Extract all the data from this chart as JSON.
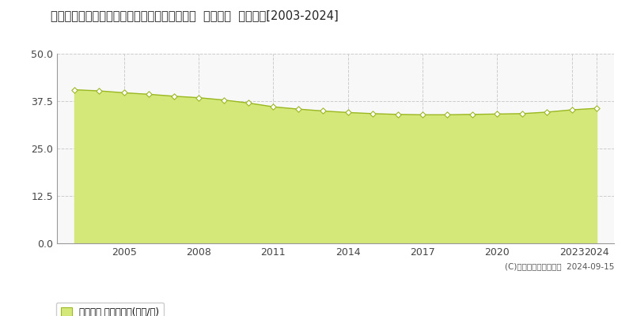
{
  "title": "鹿児島県鹿児島市谷山中央６丁目２９番２１外  地価公示  地価推移[2003-2024]",
  "years": [
    2003,
    2004,
    2005,
    2006,
    2007,
    2008,
    2009,
    2010,
    2011,
    2012,
    2013,
    2014,
    2015,
    2016,
    2017,
    2018,
    2019,
    2020,
    2021,
    2022,
    2023,
    2024
  ],
  "values": [
    40.5,
    40.2,
    39.7,
    39.3,
    38.8,
    38.4,
    37.8,
    37.0,
    36.0,
    35.4,
    34.9,
    34.5,
    34.2,
    34.0,
    33.9,
    33.9,
    34.0,
    34.1,
    34.2,
    34.6,
    35.2,
    35.6
  ],
  "line_color": "#9ab820",
  "fill_color": "#d4e87a",
  "marker_face": "#ffffff",
  "marker_edge": "#9ab820",
  "background_color": "#ffffff",
  "plot_bg_color": "#f8f8f8",
  "grid_color_h": "#cccccc",
  "grid_color_v": "#cccccc",
  "ylim": [
    0,
    50
  ],
  "yticks": [
    0,
    12.5,
    25,
    37.5,
    50
  ],
  "xlim_min": 2002.3,
  "xlim_max": 2024.7,
  "x_ticks": [
    2005,
    2008,
    2011,
    2014,
    2017,
    2020,
    2023,
    2024
  ],
  "copyright_text": "(C)土地価格ドットコム  2024-09-15",
  "legend_label": "地価公示 平均坪単価(万円/坪)"
}
